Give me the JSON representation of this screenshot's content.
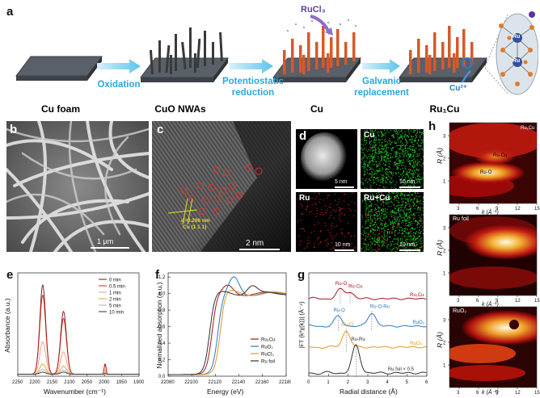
{
  "panels": {
    "a": "a",
    "b": "b",
    "c": "c",
    "d": "d",
    "e": "e",
    "f": "f",
    "g": "g",
    "h": "h"
  },
  "panel_a": {
    "steps": [
      "Cu foam",
      "CuO NWAs",
      "Cu",
      "Ru₁Cu"
    ],
    "processes": [
      "Oxidation",
      "Potentiostatic reduction",
      "Galvanic replacement"
    ],
    "reagent": "RuCl₃",
    "ion": "Cu²⁺",
    "inset_labels": [
      "Ru",
      "Ru"
    ]
  },
  "panel_b": {
    "scale": "1 μm"
  },
  "panel_c": {
    "scale": "2 nm",
    "d_spacing": "d=0.206 nm",
    "plane": "Cu (1 1 1)"
  },
  "panel_d": {
    "maps": [
      {
        "label": "",
        "scale": "5 nm",
        "color": "#9a9a9a"
      },
      {
        "label": "Cu",
        "scale": "10 nm",
        "color": "#22c422"
      },
      {
        "label": "Ru",
        "scale": "10 nm",
        "color": "#d42020"
      },
      {
        "label": "Ru+Cu",
        "scale": "10 nm",
        "color": "#22c422"
      }
    ]
  },
  "chart_data": [
    {
      "panel": "e",
      "type": "line",
      "xlabel": "Wavenumber (cm⁻¹)",
      "ylabel": "Absorbance (a.u.)",
      "xlim": [
        2250,
        1900
      ],
      "x_ticks": [
        "2250",
        "2200",
        "2150",
        "2100",
        "2050",
        "2000",
        "1950",
        "1900"
      ],
      "legend": [
        {
          "name": "0   min",
          "color": "#7a1010"
        },
        {
          "name": "0.5 min",
          "color": "#c0281c"
        },
        {
          "name": "1   min",
          "color": "#e89a8a"
        },
        {
          "name": "2   min",
          "color": "#e0a020"
        },
        {
          "name": "5   min",
          "color": "#b0b0b0"
        },
        {
          "name": "10 min",
          "color": "#303030"
        }
      ],
      "peaks_cm": [
        2178,
        2118,
        1998
      ],
      "peak_heights": [
        [
          0.88,
          0.62,
          0.1
        ],
        [
          0.78,
          0.55,
          0.09
        ],
        [
          0.32,
          0.22,
          0.04
        ],
        [
          0.1,
          0.08,
          0.02
        ],
        [
          0.05,
          0.04,
          0.01
        ],
        [
          0.02,
          0.02,
          0.005
        ]
      ]
    },
    {
      "panel": "f",
      "type": "line",
      "xlabel": "Energy (eV)",
      "ylabel": "Normalized absorption (a.u.)",
      "xlim": [
        22080,
        22180
      ],
      "ylim": [
        0.0,
        1.25
      ],
      "x_ticks": [
        "22080",
        "22100",
        "22120",
        "22140",
        "22160",
        "22180"
      ],
      "y_ticks": [
        "0.0",
        "0.2",
        "0.4",
        "0.6",
        "0.8",
        "1.0",
        "1.2"
      ],
      "series": [
        {
          "name": "Ru₁Cu",
          "color": "#a01818",
          "edge": 22117,
          "peak_x": 22131,
          "peak_y": 1.08
        },
        {
          "name": "RuO₂",
          "color": "#2878c8",
          "edge": 22122,
          "peak_x": 22136,
          "peak_y": 1.18
        },
        {
          "name": "RuCl₃",
          "color": "#e09820",
          "edge": 22124,
          "peak_x": 22128,
          "peak_y": 1.04
        },
        {
          "name": "Ru foil",
          "color": "#303030",
          "edge": 22115,
          "peak_x": 22151,
          "peak_y": 1.1
        }
      ]
    },
    {
      "panel": "g",
      "type": "line",
      "xlabel": "Radial distance (Å)",
      "ylabel": "|FT (k³χ(k))| (Å⁻⁴)",
      "xlim": [
        0,
        6
      ],
      "x_ticks": [
        "0",
        "1",
        "2",
        "3",
        "4",
        "5",
        "6"
      ],
      "series": [
        {
          "name": "Ru₁Cu",
          "color": "#a01818",
          "peaks": [
            [
              1.6,
              0.5
            ],
            [
              2.1,
              0.35
            ]
          ],
          "annotations": [
            "Ru-O",
            "Ru-Cu"
          ]
        },
        {
          "name": "RuO₂",
          "color": "#2878c8",
          "peaks": [
            [
              1.5,
              0.55
            ],
            [
              3.2,
              0.75
            ]
          ],
          "annotations": [
            "Ru-O",
            "Ru-O-Ru"
          ]
        },
        {
          "name": "RuCl₃",
          "color": "#e09820",
          "peaks": [
            [
              1.9,
              0.9
            ]
          ],
          "annotations": [
            "Ru-Cl"
          ]
        },
        {
          "name": "Ru foil × 0.5",
          "color": "#303030",
          "peaks": [
            [
              2.4,
              1.3
            ]
          ],
          "annotations": [
            "Ru-Ru"
          ]
        }
      ]
    },
    {
      "panel": "h",
      "type": "heatmap",
      "xlabel": "k (Å⁻¹)",
      "ylabel": "R (Å)",
      "x_ticks": [
        "3",
        "6",
        "9",
        "12",
        "15"
      ],
      "y_ticks": [
        "1",
        "2",
        "3"
      ],
      "maps": [
        {
          "title": "Ru₁Cu",
          "labels": [
            "Ru-Cu",
            "Ru-O"
          ]
        },
        {
          "title": "Ru foil",
          "labels": []
        },
        {
          "title": "RuO₂",
          "labels": []
        }
      ]
    }
  ]
}
